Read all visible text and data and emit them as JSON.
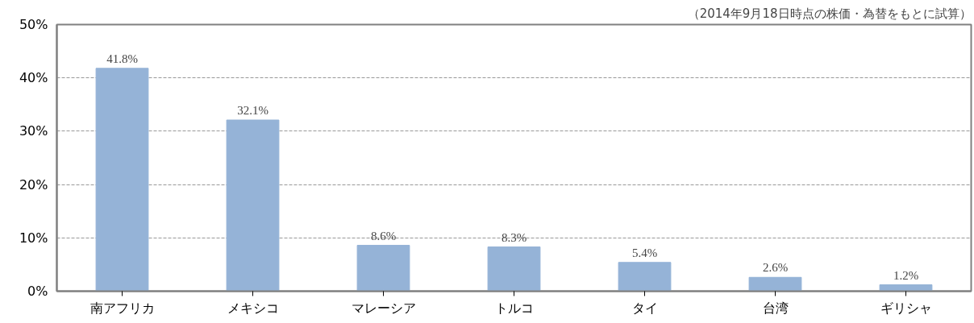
{
  "chart_data": {
    "type": "bar",
    "annotations": [
      "（2014年9月18日時点の株価・為替をもとに試算）"
    ],
    "categories": [
      "南アフリカ",
      "メキシコ",
      "マレーシア",
      "トルコ",
      "タイ",
      "台湾",
      "ギリシャ"
    ],
    "values": [
      41.8,
      32.1,
      8.6,
      8.3,
      5.4,
      2.6,
      1.2
    ],
    "value_labels": [
      "41.8%",
      "32.1%",
      "8.6%",
      "8.3%",
      "5.4%",
      "2.6%",
      "1.2%"
    ],
    "color": "#95b3d7",
    "ylim": [
      0,
      50
    ],
    "yticks": [
      {
        "value": 0,
        "label": "0%"
      },
      {
        "value": 10,
        "label": "10%"
      },
      {
        "value": 20,
        "label": "20%"
      },
      {
        "value": 30,
        "label": "30%"
      },
      {
        "value": 40,
        "label": "40%"
      },
      {
        "value": 50,
        "label": "50%"
      }
    ],
    "grid": "y"
  }
}
